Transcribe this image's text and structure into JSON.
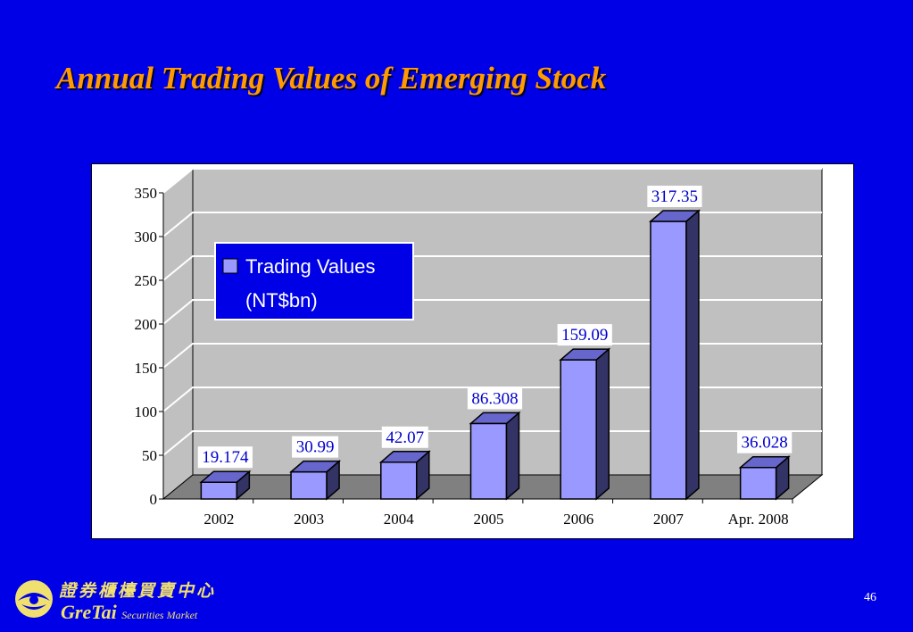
{
  "slide": {
    "title": "Annual Trading Values of Emerging Stock",
    "page_number": "46"
  },
  "logo": {
    "chinese_text": "證券櫃檯買賣中心",
    "brand_text": "GreTai",
    "tagline_text": "Securities Market"
  },
  "colors": {
    "background": "#0000e6",
    "title": "#ff9a00",
    "bar_front": "#9999ff",
    "bar_side": "#333366",
    "bar_top": "#6666cc",
    "plot_wall": "#c0c0c0",
    "plot_floor": "#808080",
    "legend_bg": "#0000e6",
    "label_text": "#0000cc"
  },
  "chart_data": {
    "type": "bar",
    "categories": [
      "2002",
      "2003",
      "2004",
      "2005",
      "2006",
      "2007",
      "Apr. 2008"
    ],
    "series": [
      {
        "name": "Trading Values (NT$bn)",
        "values": [
          19.174,
          30.99,
          42.07,
          86.308,
          159.09,
          317.35,
          36.028
        ]
      }
    ],
    "data_labels": [
      "19.174",
      "30.99",
      "42.07",
      "86.308",
      "159.09",
      "317.35",
      "36.028"
    ],
    "legend": {
      "line1": "Trading Values",
      "line2": "(NT$bn)",
      "placement": "upper-left inside plot"
    },
    "y_ticks": [
      "0",
      "50",
      "100",
      "150",
      "200",
      "250",
      "300",
      "350"
    ],
    "ylim": [
      0,
      350
    ],
    "grid": true,
    "style": "3d"
  }
}
